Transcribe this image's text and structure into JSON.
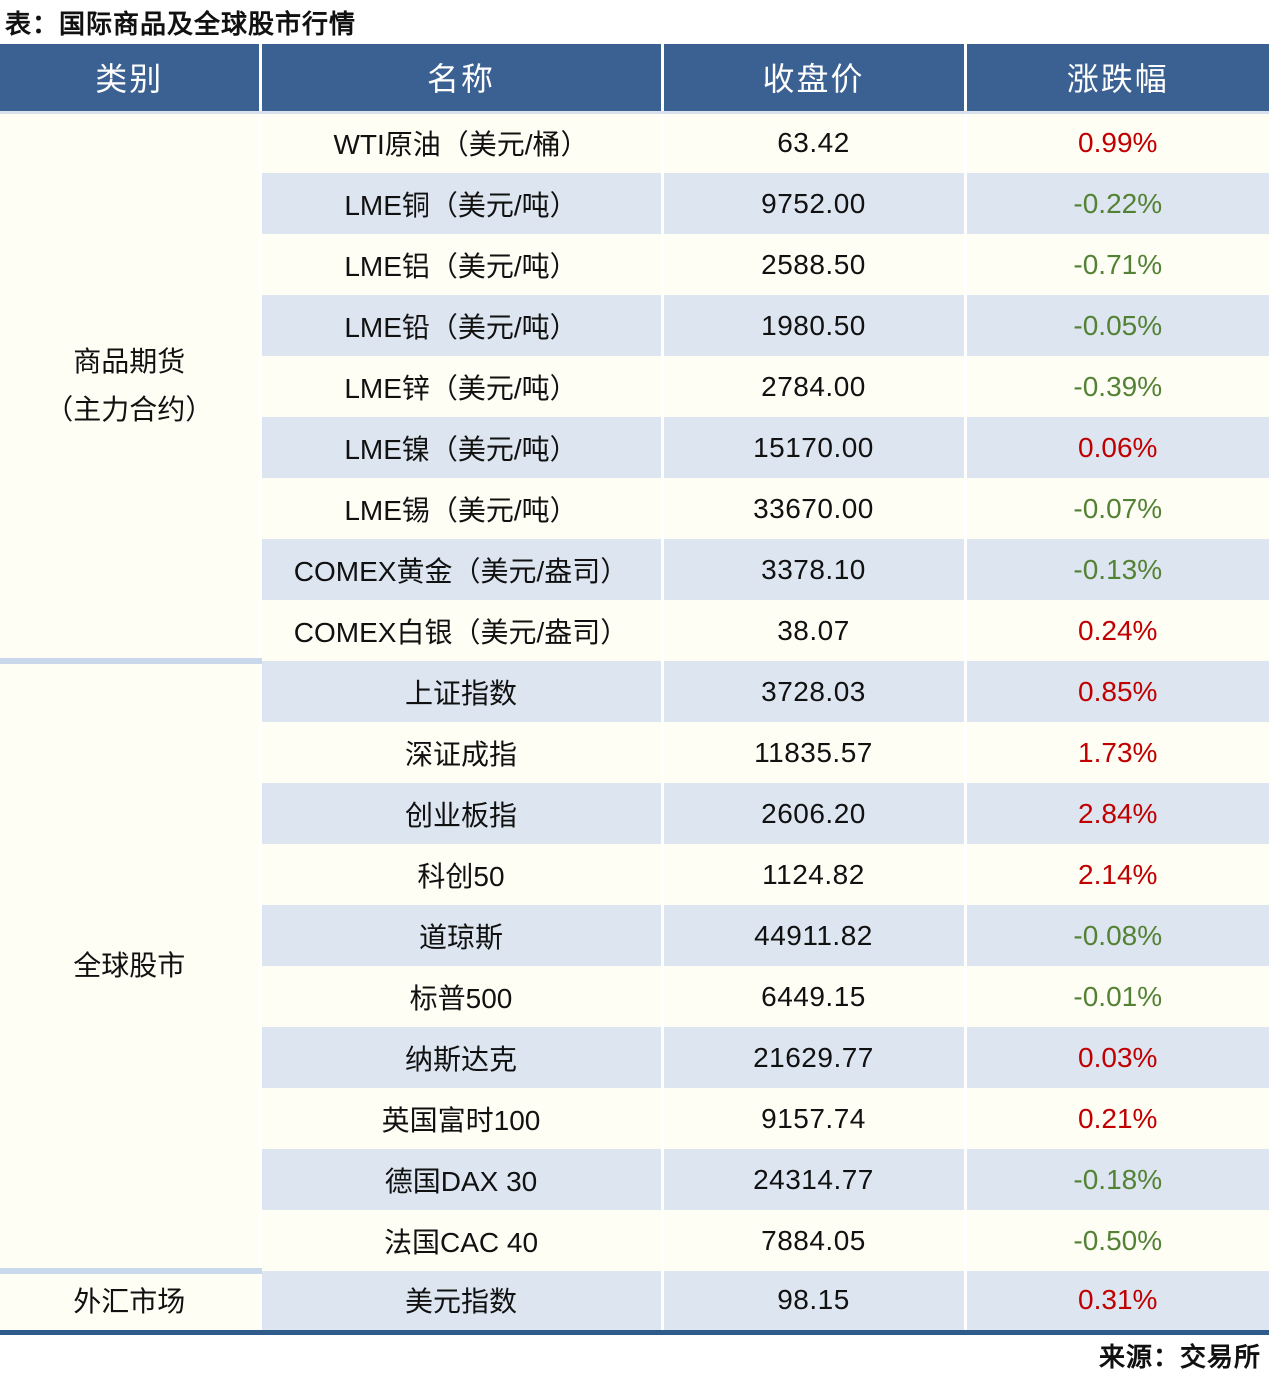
{
  "title": "表：国际商品及全球股市行情",
  "source_note": "来源：交易所",
  "colors": {
    "header_bg": "#3A6191",
    "header_text": "#FFFFFF",
    "row_bg": "#FFFEF5",
    "row_alt_bg": "#DCE5F0",
    "section_divider": "#C9D8EA",
    "bottom_border": "#2F5B8A",
    "up_red": "#C00000",
    "down_green": "#548235",
    "text": "#111111"
  },
  "chart_data": {
    "type": "table",
    "title": "表：国际商品及全球股市行情",
    "columns": [
      "类别",
      "名称",
      "收盘价",
      "涨跌幅"
    ],
    "sections": [
      {
        "category": "商品期货（主力合约）",
        "category_display": "商品期货\n（主力合约）",
        "rows": [
          {
            "name": "WTI原油（美元/桶）",
            "close": "63.42",
            "change": "0.99%"
          },
          {
            "name": "LME铜（美元/吨）",
            "close": "9752.00",
            "change": "-0.22%"
          },
          {
            "name": "LME铝（美元/吨）",
            "close": "2588.50",
            "change": "-0.71%"
          },
          {
            "name": "LME铅（美元/吨）",
            "close": "1980.50",
            "change": "-0.05%"
          },
          {
            "name": "LME锌（美元/吨）",
            "close": "2784.00",
            "change": "-0.39%"
          },
          {
            "name": "LME镍（美元/吨）",
            "close": "15170.00",
            "change": "0.06%"
          },
          {
            "name": "LME锡（美元/吨）",
            "close": "33670.00",
            "change": "-0.07%"
          },
          {
            "name": "COMEX黄金（美元/盎司）",
            "close": "3378.10",
            "change": "-0.13%"
          },
          {
            "name": "COMEX白银（美元/盎司）",
            "close": "38.07",
            "change": "0.24%"
          }
        ]
      },
      {
        "category": "全球股市",
        "category_display": "全球股市",
        "rows": [
          {
            "name": "上证指数",
            "close": "3728.03",
            "change": "0.85%"
          },
          {
            "name": "深证成指",
            "close": "11835.57",
            "change": "1.73%"
          },
          {
            "name": "创业板指",
            "close": "2606.20",
            "change": "2.84%"
          },
          {
            "name": "科创50",
            "close": "1124.82",
            "change": "2.14%"
          },
          {
            "name": "道琼斯",
            "close": "44911.82",
            "change": "-0.08%"
          },
          {
            "name": "标普500",
            "close": "6449.15",
            "change": "-0.01%"
          },
          {
            "name": "纳斯达克",
            "close": "21629.77",
            "change": "0.03%"
          },
          {
            "name": "英国富时100",
            "close": "9157.74",
            "change": "0.21%"
          },
          {
            "name": "德国DAX 30",
            "close": "24314.77",
            "change": "-0.18%"
          },
          {
            "name": "法国CAC 40",
            "close": "7884.05",
            "change": "-0.50%"
          }
        ]
      },
      {
        "category": "外汇市场",
        "category_display": "外汇市场",
        "rows": [
          {
            "name": "美元指数",
            "close": "98.15",
            "change": "0.31%"
          }
        ]
      }
    ]
  }
}
